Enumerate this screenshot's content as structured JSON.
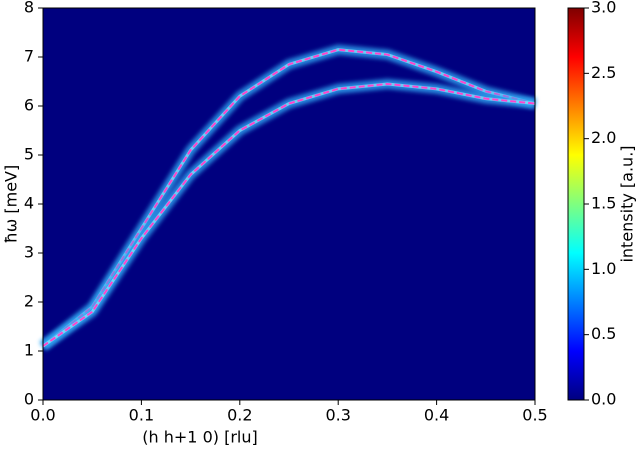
{
  "chart_data": {
    "type": "line",
    "x_label": "(h h+1 0) [rlu]",
    "y_label": "ħω [meV]",
    "colorbar_label": "intensity [a.u.]",
    "background": "#00007f",
    "x": [
      0,
      0.05,
      0.1,
      0.15,
      0.2,
      0.25,
      0.3,
      0.35,
      0.4,
      0.45,
      0.5
    ],
    "series": [
      {
        "color": "#ff44cc",
        "glow": "#2fa8f5",
        "values": [
          1.1,
          1.9,
          3.5,
          5.1,
          6.2,
          6.85,
          7.15,
          7.05,
          6.7,
          6.3,
          6.05
        ]
      },
      {
        "color": "#ff44cc",
        "glow": "#2fa8f5",
        "values": [
          1.1,
          1.8,
          3.3,
          4.6,
          5.5,
          6.05,
          6.35,
          6.45,
          6.35,
          6.15,
          6.05
        ]
      }
    ],
    "xlim": [
      0,
      0.5
    ],
    "xticks": [
      {
        "value": 0,
        "label": "0.0"
      },
      0.1,
      0.2,
      0.3,
      0.4,
      0.5
    ],
    "ylim": [
      0,
      8
    ],
    "yticks": [
      0,
      1,
      2,
      3,
      4,
      5,
      6,
      7,
      8
    ],
    "clim": [
      0,
      3
    ],
    "cticks": [
      {
        "value": 0,
        "label": "0.0"
      },
      0.5,
      {
        "value": 1,
        "label": "1.0"
      },
      1.5,
      {
        "value": 2,
        "label": "2.0"
      },
      2.5,
      {
        "value": 3,
        "label": "3.0"
      }
    ]
  }
}
